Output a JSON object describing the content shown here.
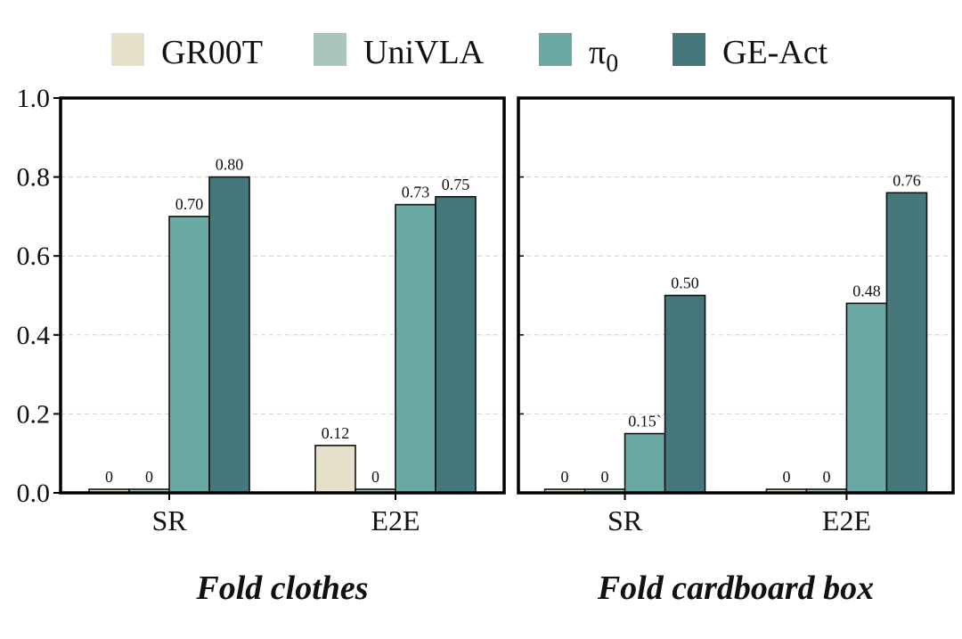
{
  "chart_data": {
    "type": "bar",
    "ylim": [
      0,
      1.0
    ],
    "yticks": [
      "0.0",
      "0.2",
      "0.4",
      "0.6",
      "0.8",
      "1.0"
    ],
    "ytick_values": [
      0.0,
      0.2,
      0.4,
      0.6,
      0.8,
      1.0
    ],
    "grid": true,
    "legend_position": "top",
    "series": [
      {
        "name": "GR00T",
        "color": "#e6dfc9"
      },
      {
        "name": "UniVLA",
        "color": "#a9c6bc"
      },
      {
        "name": "π",
        "subscript": "0",
        "color": "#6aa9a4"
      },
      {
        "name": "GE-Act",
        "color": "#46777b"
      }
    ],
    "panels": [
      {
        "title": "Fold clothes",
        "categories": [
          "SR",
          "E2E"
        ],
        "values": [
          [
            0,
            0,
            0.7,
            0.8
          ],
          [
            0.12,
            0,
            0.73,
            0.75
          ]
        ],
        "labels": [
          [
            "0",
            "0",
            "0.70",
            "0.80"
          ],
          [
            "0.12",
            "0",
            "0.73",
            "0.75"
          ]
        ]
      },
      {
        "title": "Fold cardboard box",
        "categories": [
          "SR",
          "E2E"
        ],
        "values": [
          [
            0,
            0,
            0.15,
            0.5
          ],
          [
            0,
            0,
            0.48,
            0.76
          ]
        ],
        "labels": [
          [
            "0",
            "0",
            "0.15`",
            "0.50"
          ],
          [
            "0",
            "0",
            "0.48",
            "0.76"
          ]
        ]
      }
    ]
  }
}
